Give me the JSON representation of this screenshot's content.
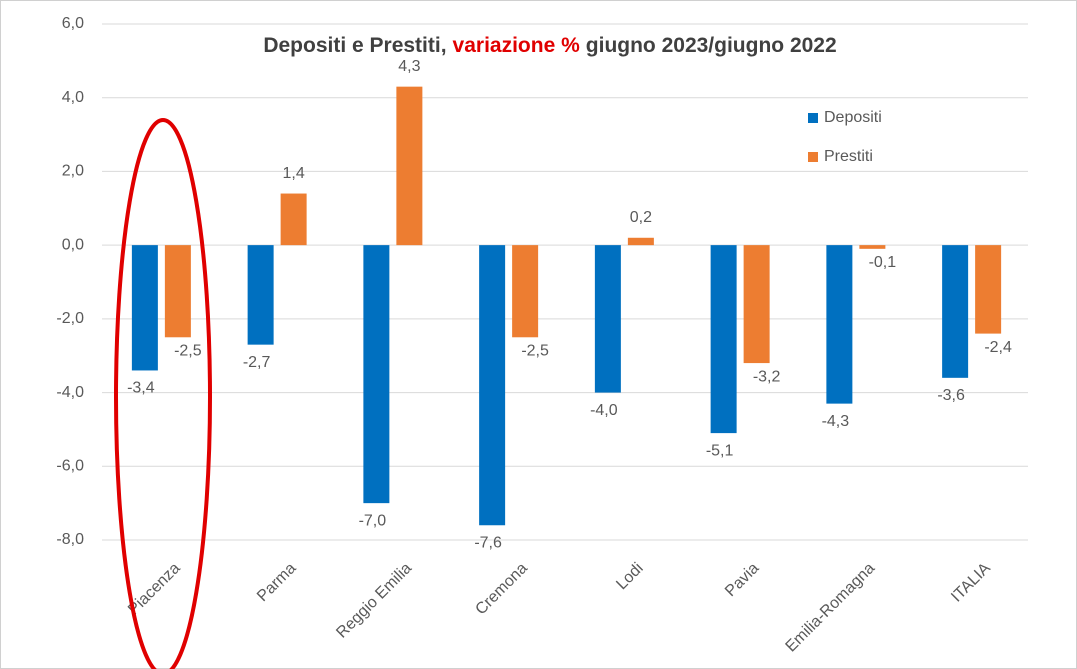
{
  "chart_data": {
    "type": "bar",
    "title": [
      {
        "text": "Depositi e Prestiti,",
        "color": "#404040"
      },
      {
        "text": "variazione %",
        "color": "#e00000"
      },
      {
        "text": "giugno 2023/giugno 2022",
        "color": "#404040"
      }
    ],
    "categories": [
      "Piacenza",
      "Parma",
      "Reggio Emilia",
      "Cremona",
      "Lodi",
      "Pavia",
      "Emilia-Romagna",
      "ITALIA"
    ],
    "series": [
      {
        "name": "Depositi",
        "color": "#0070c0",
        "values": [
          -3.4,
          -2.7,
          -7.0,
          -7.6,
          -4.0,
          -5.1,
          -4.3,
          -3.6
        ],
        "value_labels": [
          "-3,4",
          "-2,7",
          "-7,0",
          "-7,6",
          "-4,0",
          "-5,1",
          "-4,3",
          "-3,6"
        ]
      },
      {
        "name": "Prestiti",
        "color": "#ed7d31",
        "values": [
          -2.5,
          1.4,
          4.3,
          -2.5,
          0.2,
          -3.2,
          -0.1,
          -2.4
        ],
        "value_labels": [
          "-2,5",
          "1,4",
          "4,3",
          "-2,5",
          "0,2",
          "-3,2",
          "-0,1",
          "-2,4"
        ]
      }
    ],
    "ylim": [
      -8,
      6
    ],
    "yticks": [
      {
        "value": -8,
        "label": "-8,0"
      },
      {
        "value": -6,
        "label": "-6,0"
      },
      {
        "value": -4,
        "label": "-4,0"
      },
      {
        "value": -2,
        "label": "-2,0"
      },
      {
        "value": 0,
        "label": "0,0"
      },
      {
        "value": 2,
        "label": "2,0"
      },
      {
        "value": 4,
        "label": "4,0"
      },
      {
        "value": 6,
        "label": "6,0"
      }
    ],
    "grid": true,
    "legend": "upper right"
  }
}
